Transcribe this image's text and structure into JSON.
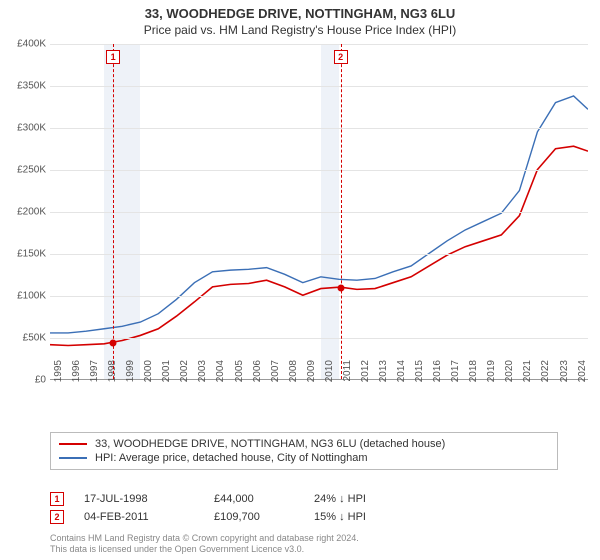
{
  "title": "33, WOODHEDGE DRIVE, NOTTINGHAM, NG3 6LU",
  "subtitle": "Price paid vs. HM Land Registry's House Price Index (HPI)",
  "chart": {
    "type": "line",
    "background_color": "#ffffff",
    "shade_color": "#eef2f8",
    "shade_ranges_x": [
      [
        1998,
        2000
      ],
      [
        2010,
        2011
      ]
    ],
    "xlim": [
      1995,
      2024.8
    ],
    "ylim": [
      0,
      400000
    ],
    "ytick_step": 50000,
    "ylabels": [
      "£0",
      "£50K",
      "£100K",
      "£150K",
      "£200K",
      "£250K",
      "£300K",
      "£350K",
      "£400K"
    ],
    "xticks": [
      1995,
      1996,
      1997,
      1998,
      1999,
      2000,
      2001,
      2002,
      2003,
      2004,
      2005,
      2006,
      2007,
      2008,
      2009,
      2010,
      2011,
      2012,
      2013,
      2014,
      2015,
      2016,
      2017,
      2018,
      2019,
      2020,
      2021,
      2022,
      2023,
      2024
    ],
    "grid_color": "#e4e4e4",
    "series": [
      {
        "name": "33, WOODHEDGE DRIVE, NOTTINGHAM, NG3 6LU (detached house)",
        "color": "#d40000",
        "line_width": 1.6,
        "x": [
          1995,
          1996,
          1997,
          1998,
          1998.5,
          1999,
          2000,
          2001,
          2002,
          2003,
          2004,
          2005,
          2006,
          2007,
          2008,
          2009,
          2010,
          2011,
          2011.1,
          2012,
          2013,
          2014,
          2015,
          2016,
          2017,
          2018,
          2019,
          2020,
          2021,
          2022,
          2023,
          2024,
          2024.8
        ],
        "y": [
          41000,
          40000,
          41000,
          42000,
          44000,
          46000,
          52000,
          60000,
          75000,
          92000,
          110000,
          113000,
          114000,
          118000,
          110000,
          100000,
          108000,
          109700,
          109700,
          107000,
          108000,
          115000,
          122000,
          135000,
          148000,
          158000,
          165000,
          172000,
          195000,
          250000,
          275000,
          278000,
          272000
        ]
      },
      {
        "name": "HPI: Average price, detached house, City of Nottingham",
        "color": "#3b6fb6",
        "line_width": 1.4,
        "x": [
          1995,
          1996,
          1997,
          1998,
          1999,
          2000,
          2001,
          2002,
          2003,
          2004,
          2005,
          2006,
          2007,
          2008,
          2009,
          2010,
          2011,
          2012,
          2013,
          2014,
          2015,
          2016,
          2017,
          2018,
          2019,
          2020,
          2021,
          2022,
          2023,
          2024,
          2024.8
        ],
        "y": [
          55000,
          55000,
          57000,
          60000,
          63000,
          68000,
          78000,
          95000,
          115000,
          128000,
          130000,
          131000,
          133000,
          125000,
          115000,
          122000,
          119000,
          118000,
          120000,
          128000,
          135000,
          150000,
          165000,
          178000,
          188000,
          198000,
          225000,
          295000,
          330000,
          338000,
          322000
        ]
      }
    ],
    "sale_markers": [
      {
        "n": "1",
        "x": 1998.5,
        "y": 44000,
        "color": "#d40000"
      },
      {
        "n": "2",
        "x": 2011.1,
        "y": 109700,
        "color": "#d40000"
      }
    ]
  },
  "legend": {
    "items": [
      {
        "label": "33, WOODHEDGE DRIVE, NOTTINGHAM, NG3 6LU (detached house)",
        "color": "#d40000"
      },
      {
        "label": "HPI: Average price, detached house, City of Nottingham",
        "color": "#3b6fb6"
      }
    ]
  },
  "sales": [
    {
      "n": "1",
      "color": "#d40000",
      "date": "17-JUL-1998",
      "price": "£44,000",
      "pct": "24% ↓ HPI"
    },
    {
      "n": "2",
      "color": "#d40000",
      "date": "04-FEB-2011",
      "price": "£109,700",
      "pct": "15% ↓ HPI"
    }
  ],
  "footer": {
    "line1": "Contains HM Land Registry data © Crown copyright and database right 2024.",
    "line2": "This data is licensed under the Open Government Licence v3.0."
  }
}
